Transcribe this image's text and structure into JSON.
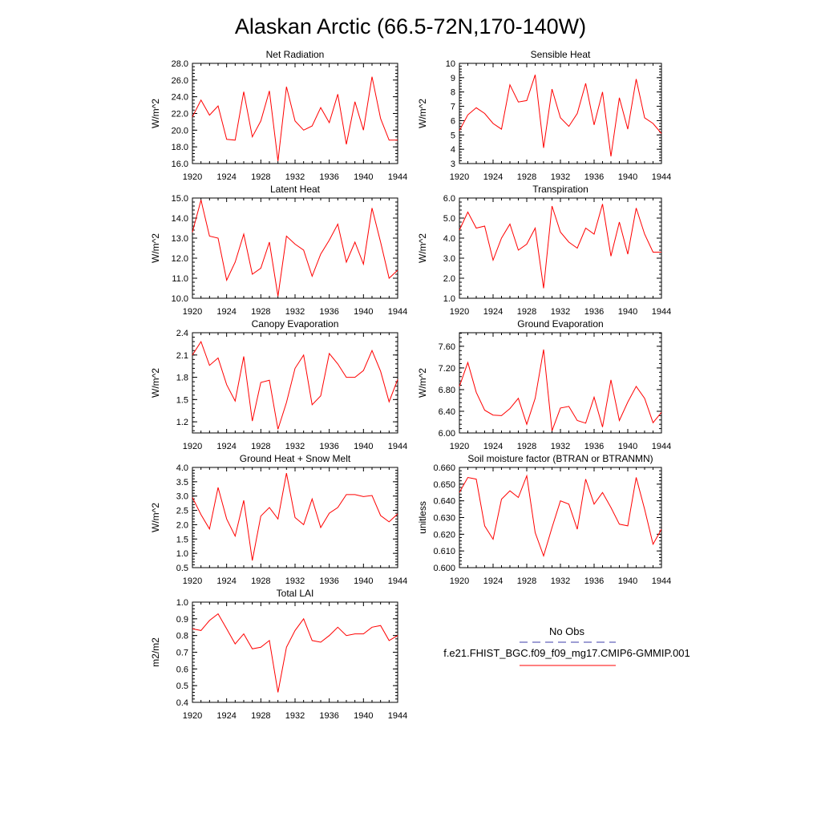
{
  "figure": {
    "title": "Alaskan Arctic (66.5-72N,170-140W)"
  },
  "colors": {
    "model_line": "#ff0000",
    "obs_line": "#3c3caa",
    "axis": "#000000"
  },
  "legend": {
    "obs_label": "No Obs",
    "model_label": "f.e21.FHIST_BGC.f09_f09_mg17.CMIP6-GMMIP.001"
  },
  "chart_data": [
    {
      "type": "line",
      "title": "Net Radiation",
      "ylabel": "W/m^2",
      "xlim": [
        1920,
        1944
      ],
      "ylim": [
        16.0,
        28.0
      ],
      "xticks": [
        "1920",
        "1924",
        "1928",
        "1932",
        "1936",
        "1940",
        "1944"
      ],
      "yticks": [
        "16.0",
        "18.0",
        "20.0",
        "22.0",
        "24.0",
        "26.0",
        "28.0"
      ],
      "series": [
        {
          "name": "f.e21.FHIST_BGC.f09_f09_mg17.CMIP6-GMMIP.001",
          "x": [
            1920,
            1921,
            1922,
            1923,
            1924,
            1925,
            1926,
            1927,
            1928,
            1929,
            1930,
            1931,
            1932,
            1933,
            1934,
            1935,
            1936,
            1937,
            1938,
            1939,
            1940,
            1941,
            1942,
            1943,
            1944
          ],
          "y": [
            21.6,
            23.6,
            21.8,
            22.9,
            18.9,
            18.8,
            24.6,
            19.2,
            21.1,
            24.7,
            16.3,
            25.2,
            21.1,
            20.0,
            20.5,
            22.7,
            20.9,
            24.3,
            18.3,
            23.4,
            20.0,
            26.4,
            21.4,
            18.8,
            18.8
          ]
        }
      ]
    },
    {
      "type": "line",
      "title": "Sensible Heat",
      "ylabel": "W/m^2",
      "xlim": [
        1920,
        1944
      ],
      "ylim": [
        3,
        10
      ],
      "xticks": [
        "1920",
        "1924",
        "1928",
        "1932",
        "1936",
        "1940",
        "1944"
      ],
      "yticks": [
        "3",
        "4",
        "5",
        "6",
        "7",
        "8",
        "9",
        "10"
      ],
      "series": [
        {
          "name": "f.e21.FHIST_BGC.f09_f09_mg17.CMIP6-GMMIP.001",
          "x": [
            1920,
            1921,
            1922,
            1923,
            1924,
            1925,
            1926,
            1927,
            1928,
            1929,
            1930,
            1931,
            1932,
            1933,
            1934,
            1935,
            1936,
            1937,
            1938,
            1939,
            1940,
            1941,
            1942,
            1943,
            1944
          ],
          "y": [
            5.3,
            6.4,
            6.9,
            6.5,
            5.8,
            5.4,
            8.5,
            7.3,
            7.4,
            9.2,
            4.1,
            8.2,
            6.2,
            5.6,
            6.5,
            8.6,
            5.7,
            8.0,
            3.5,
            7.6,
            5.4,
            8.9,
            6.2,
            5.8,
            5.1
          ]
        }
      ]
    },
    {
      "type": "line",
      "title": "Latent Heat",
      "ylabel": "W/m^2",
      "xlim": [
        1920,
        1944
      ],
      "ylim": [
        10.0,
        15.0
      ],
      "xticks": [
        "1920",
        "1924",
        "1928",
        "1932",
        "1936",
        "1940",
        "1944"
      ],
      "yticks": [
        "10.0",
        "11.0",
        "12.0",
        "13.0",
        "14.0",
        "15.0"
      ],
      "series": [
        {
          "name": "f.e21.FHIST_BGC.f09_f09_mg17.CMIP6-GMMIP.001",
          "x": [
            1920,
            1921,
            1922,
            1923,
            1924,
            1925,
            1926,
            1927,
            1928,
            1929,
            1930,
            1931,
            1932,
            1933,
            1934,
            1935,
            1936,
            1937,
            1938,
            1939,
            1940,
            1941,
            1942,
            1943,
            1944
          ],
          "y": [
            13.3,
            14.9,
            13.1,
            13.0,
            10.9,
            11.8,
            13.2,
            11.2,
            11.5,
            12.8,
            10.1,
            13.1,
            12.7,
            12.4,
            11.1,
            12.2,
            12.9,
            13.7,
            11.8,
            12.8,
            11.7,
            14.5,
            12.8,
            11.0,
            11.4
          ]
        }
      ]
    },
    {
      "type": "line",
      "title": "Transpiration",
      "ylabel": "W/m^2",
      "xlim": [
        1920,
        1944
      ],
      "ylim": [
        1.0,
        6.0
      ],
      "xticks": [
        "1920",
        "1924",
        "1928",
        "1932",
        "1936",
        "1940",
        "1944"
      ],
      "yticks": [
        "1.0",
        "2.0",
        "3.0",
        "4.0",
        "5.0",
        "6.0"
      ],
      "series": [
        {
          "name": "f.e21.FHIST_BGC.f09_f09_mg17.CMIP6-GMMIP.001",
          "x": [
            1920,
            1921,
            1922,
            1923,
            1924,
            1925,
            1926,
            1927,
            1928,
            1929,
            1930,
            1931,
            1932,
            1933,
            1934,
            1935,
            1936,
            1937,
            1938,
            1939,
            1940,
            1941,
            1942,
            1943,
            1944
          ],
          "y": [
            4.4,
            5.3,
            4.5,
            4.6,
            2.9,
            4.0,
            4.7,
            3.4,
            3.7,
            4.5,
            1.5,
            5.6,
            4.3,
            3.8,
            3.5,
            4.5,
            4.2,
            5.7,
            3.1,
            4.8,
            3.2,
            5.5,
            4.2,
            3.3,
            3.3
          ]
        }
      ]
    },
    {
      "type": "line",
      "title": "Canopy Evaporation",
      "ylabel": "W/m^2",
      "xlim": [
        1920,
        1944
      ],
      "ylim": [
        1.05,
        2.4
      ],
      "xticks": [
        "1920",
        "1924",
        "1928",
        "1932",
        "1936",
        "1940",
        "1944"
      ],
      "yticks": [
        "1.2",
        "1.5",
        "1.8",
        "2.1",
        "2.4"
      ],
      "series": [
        {
          "name": "f.e21.FHIST_BGC.f09_f09_mg17.CMIP6-GMMIP.001",
          "x": [
            1920,
            1921,
            1922,
            1923,
            1924,
            1925,
            1926,
            1927,
            1928,
            1929,
            1930,
            1931,
            1932,
            1933,
            1934,
            1935,
            1936,
            1937,
            1938,
            1939,
            1940,
            1941,
            1942,
            1943,
            1944
          ],
          "y": [
            2.1,
            2.28,
            1.96,
            2.06,
            1.7,
            1.48,
            2.08,
            1.21,
            1.73,
            1.76,
            1.1,
            1.46,
            1.92,
            2.1,
            1.43,
            1.55,
            2.12,
            1.98,
            1.8,
            1.8,
            1.89,
            2.16,
            1.88,
            1.47,
            1.77
          ]
        }
      ]
    },
    {
      "type": "line",
      "title": "Ground Evaporation",
      "ylabel": "W/m^2",
      "xlim": [
        1920,
        1944
      ],
      "ylim": [
        6.0,
        7.85
      ],
      "xticks": [
        "1920",
        "1924",
        "1928",
        "1932",
        "1936",
        "1940",
        "1944"
      ],
      "yticks": [
        "6.00",
        "6.40",
        "6.80",
        "7.20",
        "7.60"
      ],
      "series": [
        {
          "name": "f.e21.FHIST_BGC.f09_f09_mg17.CMIP6-GMMIP.001",
          "x": [
            1920,
            1921,
            1922,
            1923,
            1924,
            1925,
            1926,
            1927,
            1928,
            1929,
            1930,
            1931,
            1932,
            1933,
            1934,
            1935,
            1936,
            1937,
            1938,
            1939,
            1940,
            1941,
            1942,
            1943,
            1944
          ],
          "y": [
            6.86,
            7.3,
            6.75,
            6.42,
            6.33,
            6.32,
            6.45,
            6.64,
            6.16,
            6.64,
            7.54,
            6.04,
            6.46,
            6.49,
            6.23,
            6.18,
            6.66,
            6.11,
            6.98,
            6.23,
            6.57,
            6.86,
            6.64,
            6.19,
            6.38
          ]
        }
      ]
    },
    {
      "type": "line",
      "title": "Ground Heat + Snow Melt",
      "ylabel": "W/m^2",
      "xlim": [
        1920,
        1944
      ],
      "ylim": [
        0.5,
        4.0
      ],
      "xticks": [
        "1920",
        "1924",
        "1928",
        "1932",
        "1936",
        "1940",
        "1944"
      ],
      "yticks": [
        "0.5",
        "1.0",
        "1.5",
        "2.0",
        "2.5",
        "3.0",
        "3.5",
        "4.0"
      ],
      "series": [
        {
          "name": "f.e21.FHIST_BGC.f09_f09_mg17.CMIP6-GMMIP.001",
          "x": [
            1920,
            1921,
            1922,
            1923,
            1924,
            1925,
            1926,
            1927,
            1928,
            1929,
            1930,
            1931,
            1932,
            1933,
            1934,
            1935,
            1936,
            1937,
            1938,
            1939,
            1940,
            1941,
            1942,
            1943,
            1944
          ],
          "y": [
            2.95,
            2.35,
            1.85,
            3.3,
            2.2,
            1.6,
            2.85,
            0.75,
            2.3,
            2.6,
            2.2,
            3.8,
            2.25,
            2.0,
            2.9,
            1.9,
            2.4,
            2.6,
            3.05,
            3.05,
            2.98,
            3.02,
            2.32,
            2.1,
            2.38
          ]
        }
      ]
    },
    {
      "type": "line",
      "title": "Soil moisture factor (BTRAN or BTRANMN)",
      "ylabel": "unitless",
      "xlim": [
        1920,
        1944
      ],
      "ylim": [
        0.6,
        0.66
      ],
      "xticks": [
        "1920",
        "1924",
        "1928",
        "1932",
        "1936",
        "1940",
        "1944"
      ],
      "yticks": [
        "0.600",
        "0.610",
        "0.620",
        "0.630",
        "0.640",
        "0.650",
        "0.660"
      ],
      "series": [
        {
          "name": "f.e21.FHIST_BGC.f09_f09_mg17.CMIP6-GMMIP.001",
          "x": [
            1920,
            1921,
            1922,
            1923,
            1924,
            1925,
            1926,
            1927,
            1928,
            1929,
            1930,
            1931,
            1932,
            1933,
            1934,
            1935,
            1936,
            1937,
            1938,
            1939,
            1940,
            1941,
            1942,
            1943,
            1944
          ],
          "y": [
            0.645,
            0.654,
            0.653,
            0.625,
            0.617,
            0.641,
            0.646,
            0.642,
            0.655,
            0.621,
            0.607,
            0.624,
            0.64,
            0.638,
            0.623,
            0.653,
            0.638,
            0.645,
            0.636,
            0.626,
            0.625,
            0.654,
            0.635,
            0.614,
            0.623
          ]
        }
      ]
    },
    {
      "type": "line",
      "title": "Total LAI",
      "ylabel": "m2/m2",
      "xlim": [
        1920,
        1944
      ],
      "ylim": [
        0.4,
        1.0
      ],
      "xticks": [
        "1920",
        "1924",
        "1928",
        "1932",
        "1936",
        "1940",
        "1944"
      ],
      "yticks": [
        "0.4",
        "0.5",
        "0.6",
        "0.7",
        "0.8",
        "0.9",
        "1.0"
      ],
      "series": [
        {
          "name": "f.e21.FHIST_BGC.f09_f09_mg17.CMIP6-GMMIP.001",
          "x": [
            1920,
            1921,
            1922,
            1923,
            1924,
            1925,
            1926,
            1927,
            1928,
            1929,
            1930,
            1931,
            1932,
            1933,
            1934,
            1935,
            1936,
            1937,
            1938,
            1939,
            1940,
            1941,
            1942,
            1943,
            1944
          ],
          "y": [
            0.84,
            0.83,
            0.89,
            0.93,
            0.84,
            0.75,
            0.81,
            0.72,
            0.73,
            0.77,
            0.46,
            0.73,
            0.83,
            0.9,
            0.77,
            0.76,
            0.8,
            0.85,
            0.8,
            0.81,
            0.81,
            0.85,
            0.86,
            0.77,
            0.8
          ]
        }
      ]
    }
  ]
}
